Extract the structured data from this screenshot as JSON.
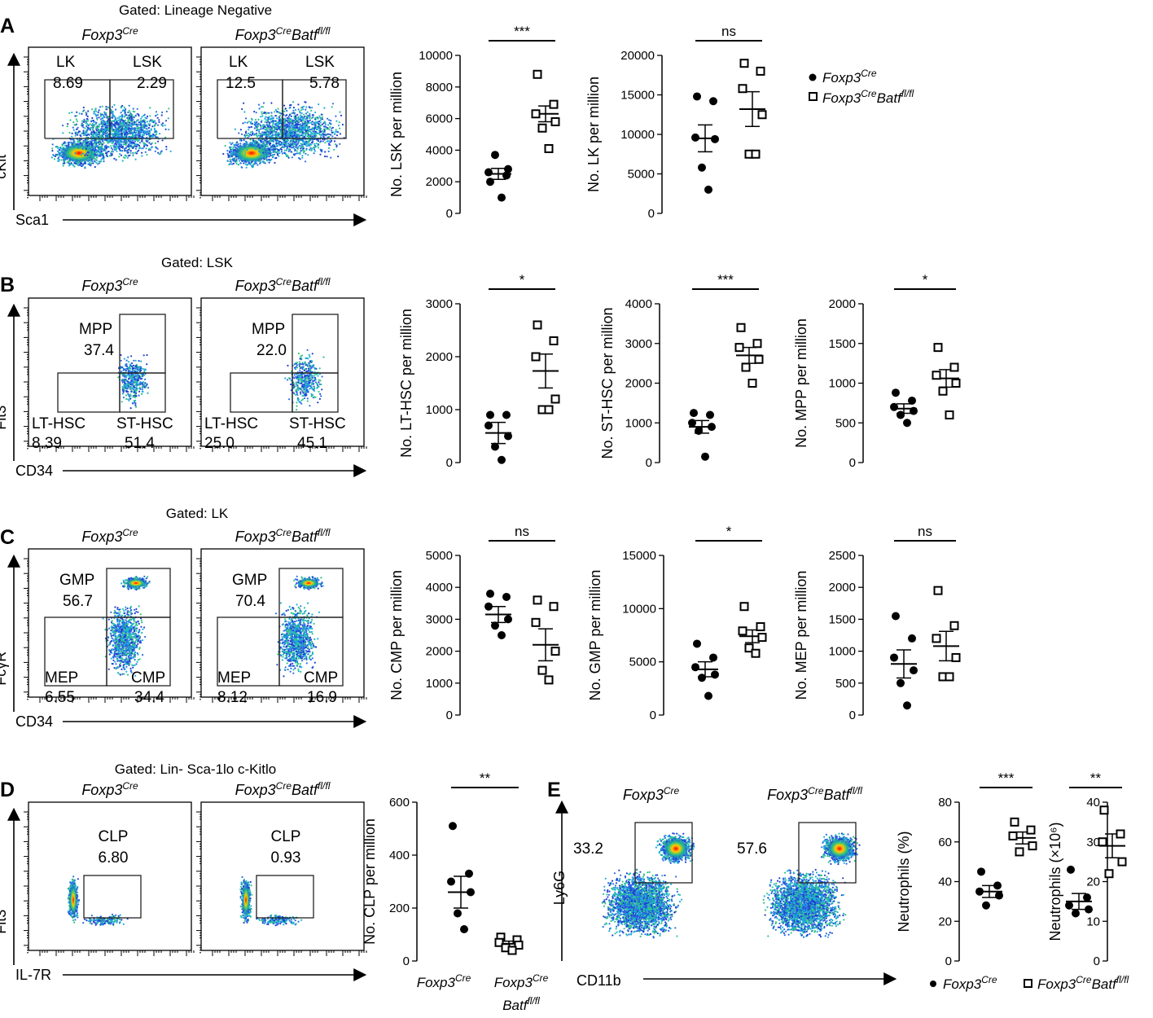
{
  "figure": {
    "panels": [
      {
        "label": "A",
        "gating_title": "Gated: Lineage Negative"
      },
      {
        "label": "B",
        "gating_title": "Gated: LSK"
      },
      {
        "label": "C",
        "gating_title": "Gated: LK"
      },
      {
        "label": "D",
        "gating_title": "Gated: Lin- Sca-1lo c-Kitlo"
      },
      {
        "label": "E",
        "gating_title": ""
      }
    ],
    "genotypes": {
      "control": {
        "base": "Foxp3",
        "sup": "Cre"
      },
      "ko": {
        "base": "Foxp3",
        "sup": "Cre",
        "base2": "Batf",
        "sup2": "fl/fl"
      }
    },
    "legend": {
      "control": "Foxp3Cre",
      "ko": "Foxp3CreBatffl/fl"
    },
    "colors": {
      "dot_fill": "#000000",
      "dot_open": "#ffffff",
      "density_low": "#1f4fd6",
      "density_mid": "#22c08a",
      "density_high": "#ff0000"
    }
  },
  "flow": {
    "A": {
      "y_axis": "cKit",
      "x_axis": "Sca1",
      "plots": [
        {
          "genotype": "Foxp3Cre",
          "gates": [
            {
              "name": "LK",
              "value": "8.69"
            },
            {
              "name": "LSK",
              "value": "2.29"
            }
          ]
        },
        {
          "genotype": "Foxp3CreBatffl/fl",
          "gates": [
            {
              "name": "LK",
              "value": "12.5"
            },
            {
              "name": "LSK",
              "value": "5.78"
            }
          ]
        }
      ]
    },
    "B": {
      "y_axis": "Flt3",
      "x_axis": "CD34",
      "plots": [
        {
          "genotype": "Foxp3Cre",
          "gates": [
            {
              "name": "MPP",
              "value": "37.4"
            },
            {
              "name": "LT-HSC",
              "value": "8.39"
            },
            {
              "name": "ST-HSC",
              "value": "51.4"
            }
          ]
        },
        {
          "genotype": "Foxp3CreBatffl/fl",
          "gates": [
            {
              "name": "MPP",
              "value": "22.0"
            },
            {
              "name": "LT-HSC",
              "value": "25.0"
            },
            {
              "name": "ST-HSC",
              "value": "45.1"
            }
          ]
        }
      ]
    },
    "C": {
      "y_axis": "FcγR",
      "x_axis": "CD34",
      "plots": [
        {
          "genotype": "Foxp3Cre",
          "gates": [
            {
              "name": "GMP",
              "value": "56.7"
            },
            {
              "name": "MEP",
              "value": "6.55"
            },
            {
              "name": "CMP",
              "value": "34.4"
            }
          ]
        },
        {
          "genotype": "Foxp3CreBatffl/fl",
          "gates": [
            {
              "name": "GMP",
              "value": "70.4"
            },
            {
              "name": "MEP",
              "value": "8.12"
            },
            {
              "name": "CMP",
              "value": "16.9"
            }
          ]
        }
      ]
    },
    "D": {
      "y_axis": "Flt3",
      "x_axis": "IL-7R",
      "plots": [
        {
          "genotype": "Foxp3Cre",
          "gates": [
            {
              "name": "CLP",
              "value": "6.80"
            }
          ]
        },
        {
          "genotype": "Foxp3CreBatffl/fl",
          "gates": [
            {
              "name": "CLP",
              "value": "0.93"
            }
          ]
        }
      ]
    },
    "E": {
      "y_axis": "Ly6G",
      "x_axis": "CD11b",
      "plots": [
        {
          "genotype": "Foxp3Cre",
          "gates": [
            {
              "name": "",
              "value": "33.2"
            }
          ]
        },
        {
          "genotype": "Foxp3CreBatffl/fl",
          "gates": [
            {
              "name": "",
              "value": "57.6"
            }
          ]
        }
      ]
    }
  },
  "chart_data": [
    {
      "type": "scatter",
      "panel": "A",
      "ylabel": "No. LSK per million",
      "ylim": [
        0,
        10000
      ],
      "yticks": [
        0,
        2000,
        4000,
        6000,
        8000,
        10000
      ],
      "significance": "***",
      "series": [
        {
          "name": "Foxp3Cre",
          "values": [
            2000,
            2400,
            2600,
            2800,
            3700,
            1000
          ],
          "mean": 2500,
          "sem": 350
        },
        {
          "name": "Foxp3CreBatffl/fl",
          "values": [
            8800,
            6900,
            6300,
            5800,
            5400,
            4100
          ],
          "mean": 6300,
          "sem": 500
        }
      ]
    },
    {
      "type": "scatter",
      "panel": "A",
      "ylabel": "No. LK per million",
      "ylim": [
        0,
        20000
      ],
      "yticks": [
        0,
        5000,
        10000,
        15000,
        20000
      ],
      "significance": "ns",
      "series": [
        {
          "name": "Foxp3Cre",
          "values": [
            14800,
            14200,
            9600,
            9400,
            5800,
            3000
          ],
          "mean": 9500,
          "sem": 1700
        },
        {
          "name": "Foxp3CreBatffl/fl",
          "values": [
            19000,
            18000,
            15800,
            12500,
            7500,
            7500
          ],
          "mean": 13200,
          "sem": 2200
        }
      ]
    },
    {
      "type": "scatter",
      "panel": "B",
      "ylabel": "No. LT-HSC per million",
      "ylim": [
        0,
        3000
      ],
      "yticks": [
        0,
        1000,
        2000,
        3000
      ],
      "significance": "*",
      "series": [
        {
          "name": "Foxp3Cre",
          "values": [
            900,
            900,
            700,
            500,
            300,
            50
          ],
          "mean": 560,
          "sem": 200
        },
        {
          "name": "Foxp3CreBatffl/fl",
          "values": [
            2600,
            2300,
            2000,
            1200,
            1000,
            1000
          ],
          "mean": 1730,
          "sem": 320
        }
      ]
    },
    {
      "type": "scatter",
      "panel": "B",
      "ylabel": "No. ST-HSC per million",
      "ylim": [
        0,
        4000
      ],
      "yticks": [
        0,
        1000,
        2000,
        3000,
        4000
      ],
      "significance": "***",
      "series": [
        {
          "name": "Foxp3Cre",
          "values": [
            1250,
            1200,
            1000,
            900,
            800,
            150
          ],
          "mean": 900,
          "sem": 160
        },
        {
          "name": "Foxp3CreBatffl/fl",
          "values": [
            3400,
            3000,
            2900,
            2600,
            2400,
            2000
          ],
          "mean": 2700,
          "sem": 200
        }
      ]
    },
    {
      "type": "scatter",
      "panel": "B",
      "ylabel": "No. MPP per million",
      "ylim": [
        0,
        2000
      ],
      "yticks": [
        0,
        500,
        1000,
        1500,
        2000
      ],
      "significance": "*",
      "series": [
        {
          "name": "Foxp3Cre",
          "values": [
            880,
            780,
            700,
            650,
            600,
            500
          ],
          "mean": 680,
          "sem": 60
        },
        {
          "name": "Foxp3CreBatffl/fl",
          "values": [
            1450,
            1200,
            1100,
            1000,
            900,
            600
          ],
          "mean": 1060,
          "sem": 110
        }
      ]
    },
    {
      "type": "scatter",
      "panel": "C",
      "ylabel": "No. CMP per million",
      "ylim": [
        0,
        5000
      ],
      "yticks": [
        0,
        1000,
        2000,
        3000,
        4000,
        5000
      ],
      "significance": "ns",
      "series": [
        {
          "name": "Foxp3Cre",
          "values": [
            3800,
            3700,
            3400,
            3000,
            2800,
            2500
          ],
          "mean": 3150,
          "sem": 250
        },
        {
          "name": "Foxp3CreBatffl/fl",
          "values": [
            3600,
            3400,
            2900,
            2000,
            1400,
            1100
          ],
          "mean": 2200,
          "sem": 500
        }
      ]
    },
    {
      "type": "scatter",
      "panel": "C",
      "ylabel": "No. GMP per million",
      "ylim": [
        0,
        15000
      ],
      "yticks": [
        0,
        5000,
        10000,
        15000
      ],
      "significance": "*",
      "series": [
        {
          "name": "Foxp3Cre",
          "values": [
            6700,
            5400,
            4500,
            3800,
            3500,
            1800
          ],
          "mean": 4300,
          "sem": 700
        },
        {
          "name": "Foxp3CreBatffl/fl",
          "values": [
            10200,
            8300,
            7900,
            7300,
            6300,
            5800
          ],
          "mean": 7400,
          "sem": 600
        }
      ]
    },
    {
      "type": "scatter",
      "panel": "C",
      "ylabel": "No. MEP per million",
      "ylim": [
        0,
        2500
      ],
      "yticks": [
        0,
        500,
        1000,
        1500,
        2000,
        2500
      ],
      "significance": "ns",
      "series": [
        {
          "name": "Foxp3Cre",
          "values": [
            1550,
            1200,
            900,
            700,
            500,
            150
          ],
          "mean": 800,
          "sem": 220
        },
        {
          "name": "Foxp3CreBatffl/fl",
          "values": [
            1950,
            1400,
            1200,
            900,
            600,
            600
          ],
          "mean": 1080,
          "sem": 230
        }
      ]
    },
    {
      "type": "scatter",
      "panel": "D",
      "ylabel": "No. CLP per million",
      "ylim": [
        0,
        600
      ],
      "yticks": [
        0,
        200,
        400,
        600
      ],
      "significance": "**",
      "categories": [
        "Foxp3Cre",
        "Foxp3CreBatffl/fl"
      ],
      "series": [
        {
          "name": "Foxp3Cre",
          "values": [
            510,
            330,
            300,
            260,
            180,
            120
          ],
          "mean": 260,
          "sem": 60
        },
        {
          "name": "Foxp3CreBatffl/fl",
          "values": [
            90,
            80,
            70,
            60,
            50,
            40
          ],
          "mean": 65,
          "sem": 10
        }
      ]
    },
    {
      "type": "scatter",
      "panel": "E",
      "ylabel": "Neutrophils (%)",
      "ylim": [
        0,
        80
      ],
      "yticks": [
        0,
        20,
        40,
        60,
        80
      ],
      "significance": "***",
      "series": [
        {
          "name": "Foxp3Cre",
          "values": [
            45,
            38,
            35,
            33,
            28
          ],
          "mean": 35,
          "sem": 3
        },
        {
          "name": "Foxp3CreBatffl/fl",
          "values": [
            70,
            66,
            63,
            58,
            55
          ],
          "mean": 62,
          "sem": 3
        }
      ]
    },
    {
      "type": "scatter",
      "panel": "E",
      "ylabel": "Neutrophils (×10⁶)",
      "ylim": [
        0,
        40
      ],
      "yticks": [
        0,
        10,
        20,
        30,
        40
      ],
      "significance": "**",
      "series": [
        {
          "name": "Foxp3Cre",
          "values": [
            23,
            16,
            14,
            13,
            12
          ],
          "mean": 15,
          "sem": 2
        },
        {
          "name": "Foxp3CreBatffl/fl",
          "values": [
            38,
            32,
            30,
            25,
            22
          ],
          "mean": 29,
          "sem": 3
        }
      ]
    }
  ]
}
